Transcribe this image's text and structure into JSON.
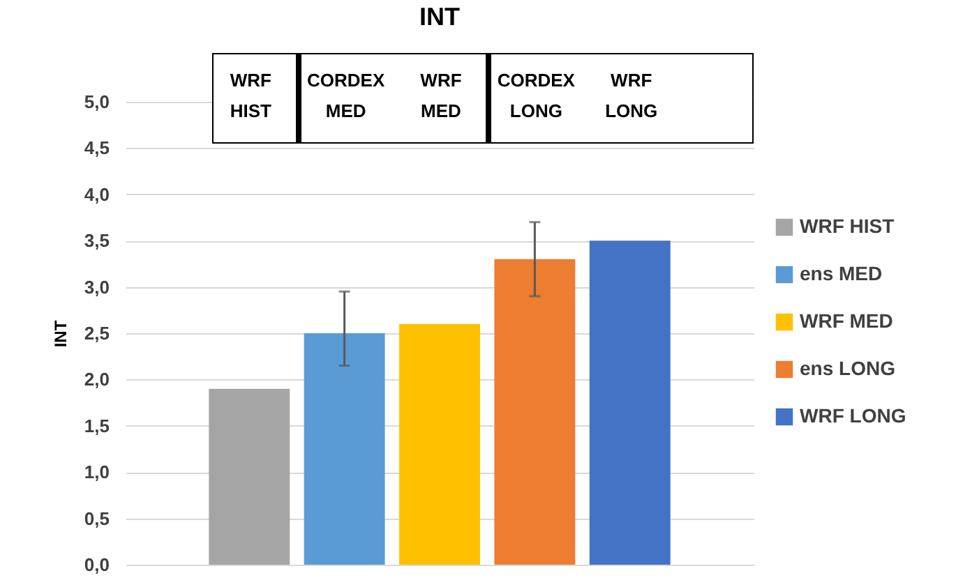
{
  "chart_data": {
    "type": "bar",
    "title": "INT",
    "ylabel": "INT",
    "categories": [
      null
    ],
    "series": [
      {
        "name": "WRF HIST",
        "color": "#a5a5a5",
        "values": [
          1.9
        ]
      },
      {
        "name": "ens MED",
        "color": "#5b9bd5",
        "values": [
          2.5
        ],
        "errors": [
          [
            2.15,
            2.95
          ]
        ]
      },
      {
        "name": "WRF MED",
        "color": "#ffc000",
        "values": [
          2.6
        ]
      },
      {
        "name": "ens LONG",
        "color": "#ed7d31",
        "values": [
          3.3
        ],
        "errors": [
          [
            2.9,
            3.7
          ]
        ]
      },
      {
        "name": "WRF LONG",
        "color": "#4472c4",
        "values": [
          3.5
        ]
      }
    ],
    "ylim": [
      0,
      5
    ],
    "yticks": [
      {
        "value": 0,
        "label": "0,0"
      },
      {
        "value": 0.5,
        "label": "0,5"
      },
      {
        "value": 1,
        "label": "1,0"
      },
      {
        "value": 1.5,
        "label": "1,5"
      },
      {
        "value": 2,
        "label": "2,0"
      },
      {
        "value": 2.5,
        "label": "2,5"
      },
      {
        "value": 3,
        "label": "3,0"
      },
      {
        "value": 3.5,
        "label": "3,5"
      },
      {
        "value": 4,
        "label": "4,0"
      },
      {
        "value": 4.5,
        "label": "4,5"
      },
      {
        "value": 5,
        "label": "5,0"
      }
    ],
    "annotations": [
      "WRF HIST",
      "CORDEX MED",
      "WRF MED",
      "CORDEX LONG",
      "WRF LONG"
    ],
    "grid": "y",
    "legend": "right",
    "tick_labels": "y"
  }
}
